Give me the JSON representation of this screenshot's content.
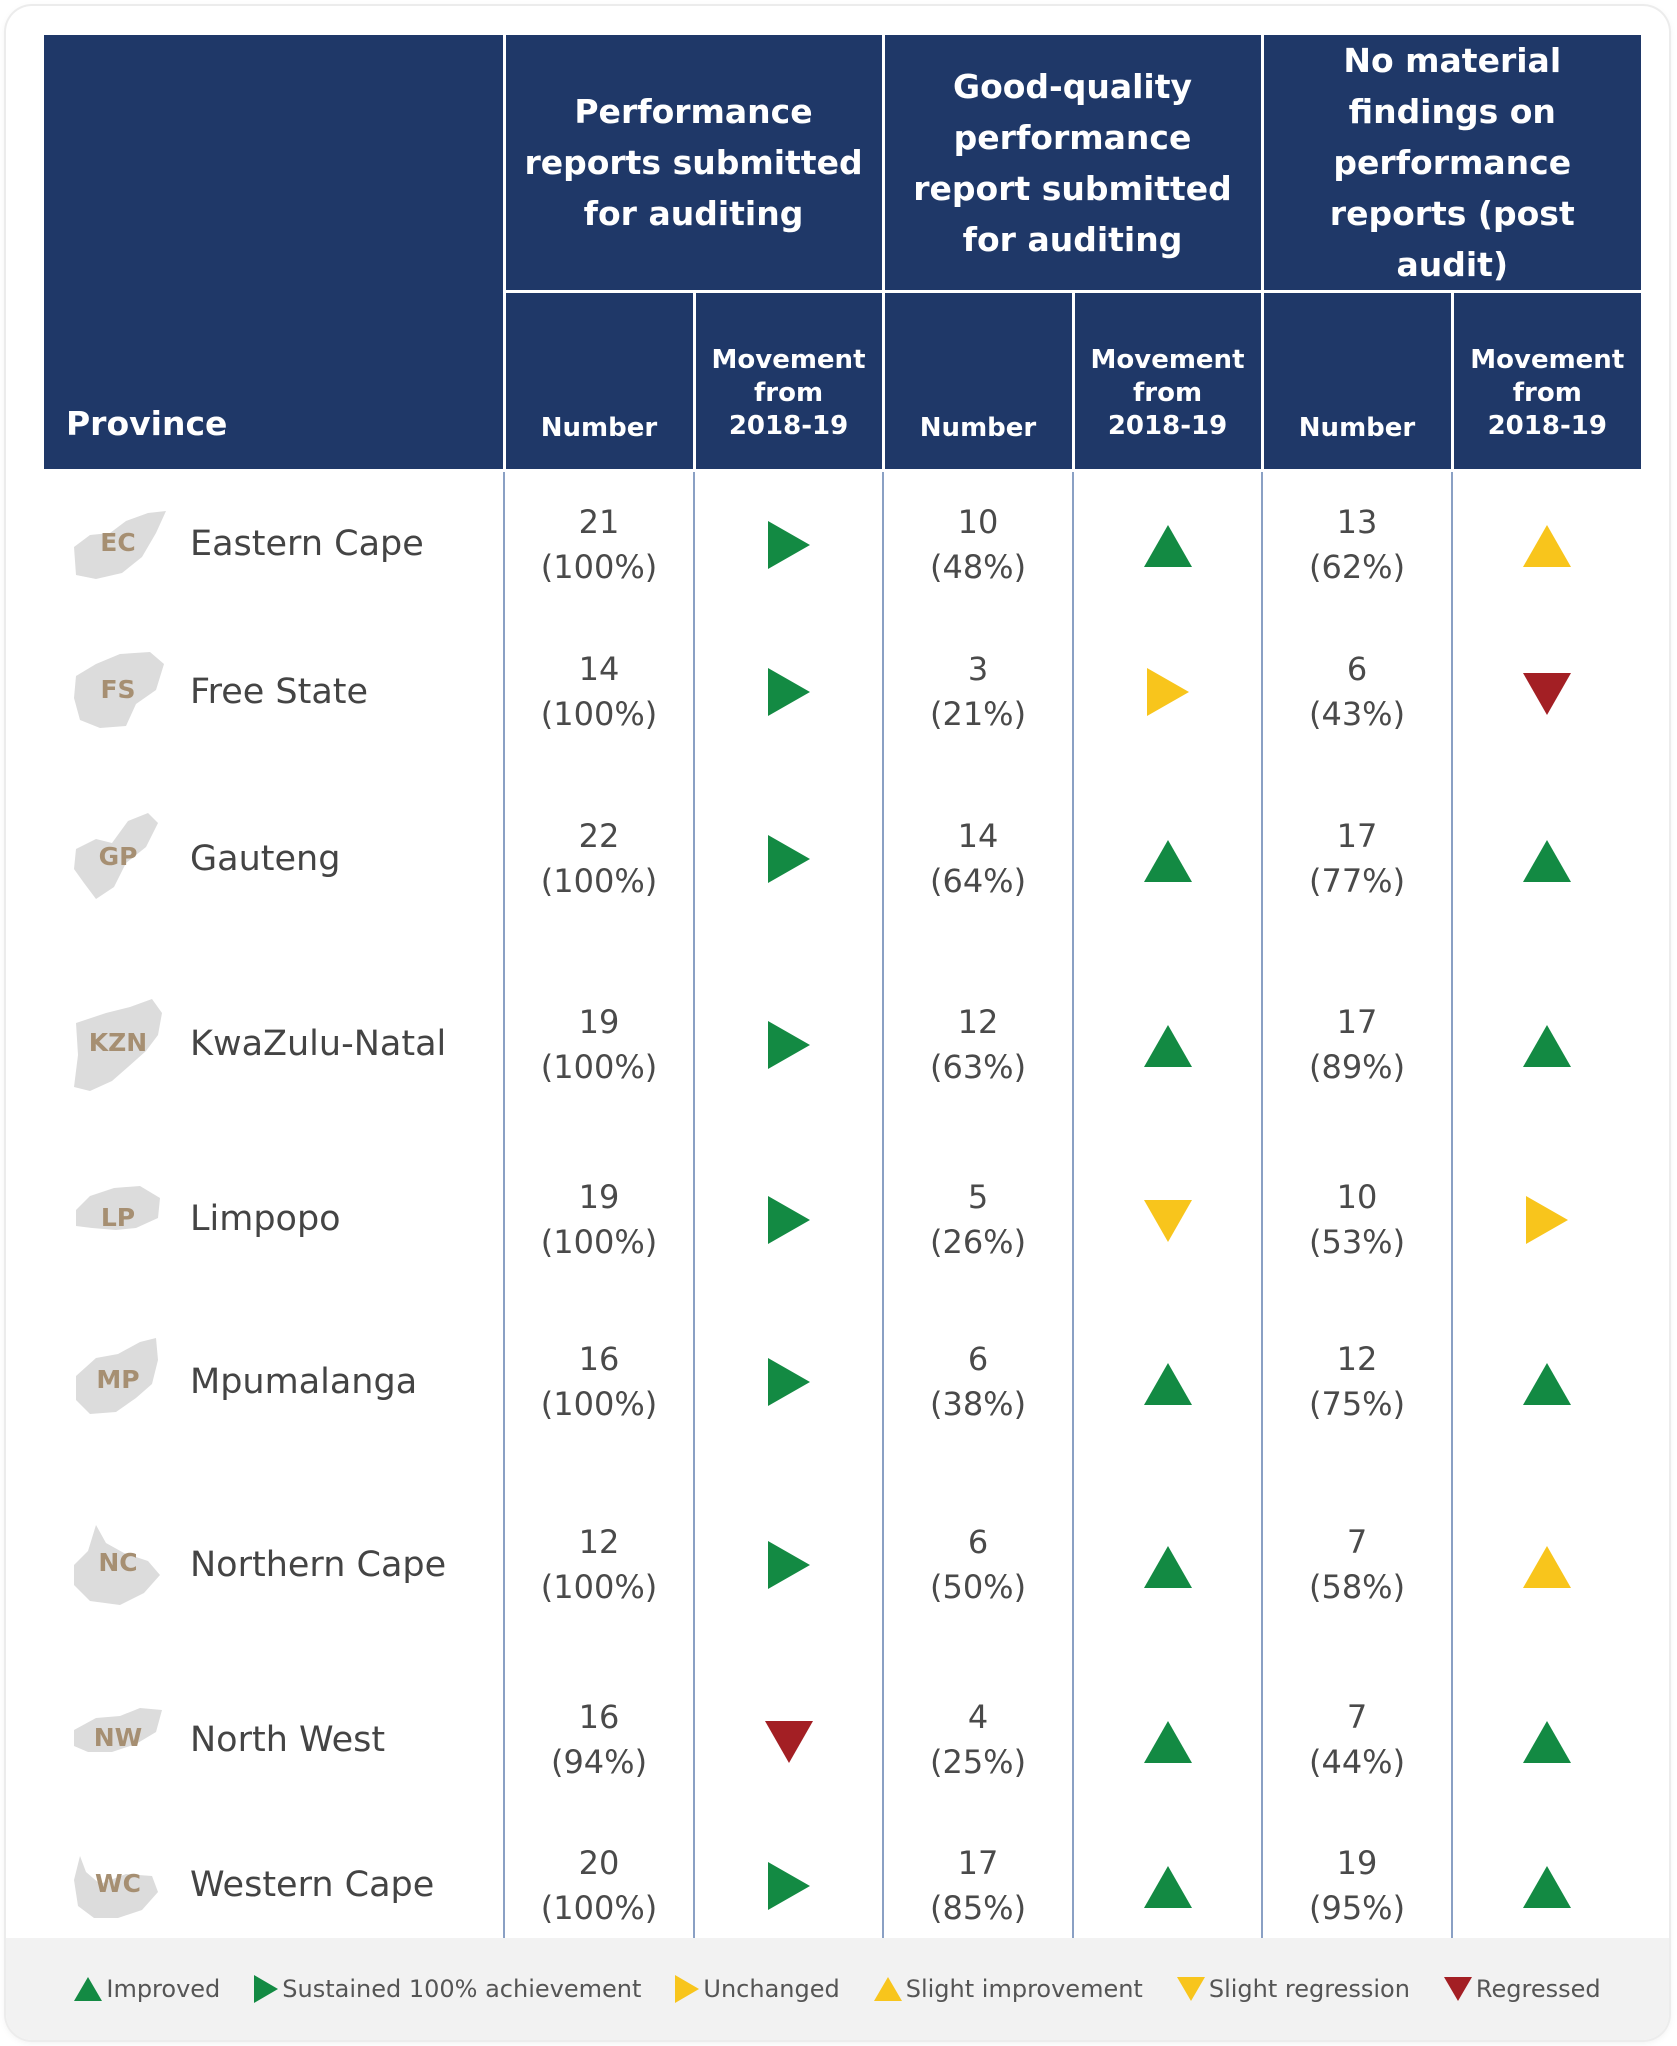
{
  "colors": {
    "header_bg": "#1f3868",
    "improved": "#138a43",
    "sustained": "#138a43",
    "unchanged": "#f8c51c",
    "slight_improvement": "#f8c51c",
    "slight_regression": "#f8c51c",
    "regressed": "#a31f24"
  },
  "header": {
    "province": "Province",
    "group1": "Performance reports submitted for auditing",
    "group2": "Good-quality performance report submitted for auditing",
    "group3": "No material findings on performance reports (post audit)",
    "number": "Number",
    "movement_line1": "Movement",
    "movement_line2": "from",
    "movement_line3": "2018-19"
  },
  "rows": [
    {
      "code": "EC",
      "name": "Eastern Cape",
      "n1": "21",
      "p1": "(100%)",
      "m1": "sustained",
      "n2": "10",
      "p2": "(48%)",
      "m2": "improved",
      "n3": "13",
      "p3": "(62%)",
      "m3": "slight_improvement"
    },
    {
      "code": "FS",
      "name": "Free State",
      "n1": "14",
      "p1": "(100%)",
      "m1": "sustained",
      "n2": "3",
      "p2": "(21%)",
      "m2": "unchanged",
      "n3": "6",
      "p3": "(43%)",
      "m3": "regressed"
    },
    {
      "code": "GP",
      "name": "Gauteng",
      "n1": "22",
      "p1": "(100%)",
      "m1": "sustained",
      "n2": "14",
      "p2": "(64%)",
      "m2": "improved",
      "n3": "17",
      "p3": "(77%)",
      "m3": "improved"
    },
    {
      "code": "KZN",
      "name": "KwaZulu-Natal",
      "n1": "19",
      "p1": "(100%)",
      "m1": "sustained",
      "n2": "12",
      "p2": "(63%)",
      "m2": "improved",
      "n3": "17",
      "p3": "(89%)",
      "m3": "improved"
    },
    {
      "code": "LP",
      "name": "Limpopo",
      "n1": "19",
      "p1": "(100%)",
      "m1": "sustained",
      "n2": "5",
      "p2": "(26%)",
      "m2": "slight_regression",
      "n3": "10",
      "p3": "(53%)",
      "m3": "unchanged"
    },
    {
      "code": "MP",
      "name": "Mpumalanga",
      "n1": "16",
      "p1": "(100%)",
      "m1": "sustained",
      "n2": "6",
      "p2": "(38%)",
      "m2": "improved",
      "n3": "12",
      "p3": "(75%)",
      "m3": "improved"
    },
    {
      "code": "NC",
      "name": "Northern Cape",
      "n1": "12",
      "p1": "(100%)",
      "m1": "sustained",
      "n2": "6",
      "p2": "(50%)",
      "m2": "improved",
      "n3": "7",
      "p3": "(58%)",
      "m3": "slight_improvement"
    },
    {
      "code": "NW",
      "name": "North West",
      "n1": "16",
      "p1": "(94%)",
      "m1": "regressed",
      "n2": "4",
      "p2": "(25%)",
      "m2": "improved",
      "n3": "7",
      "p3": "(44%)",
      "m3": "improved"
    },
    {
      "code": "WC",
      "name": "Western Cape",
      "n1": "20",
      "p1": "(100%)",
      "m1": "sustained",
      "n2": "17",
      "p2": "(85%)",
      "m2": "improved",
      "n3": "19",
      "p3": "(95%)",
      "m3": "improved"
    }
  ],
  "legend": [
    {
      "key": "improved",
      "label": "Improved"
    },
    {
      "key": "sustained",
      "label": "Sustained 100% achievement"
    },
    {
      "key": "unchanged",
      "label": "Unchanged"
    },
    {
      "key": "slight_improvement",
      "label": "Slight improvement"
    },
    {
      "key": "slight_regression",
      "label": "Slight regression"
    },
    {
      "key": "regressed",
      "label": "Regressed"
    }
  ]
}
